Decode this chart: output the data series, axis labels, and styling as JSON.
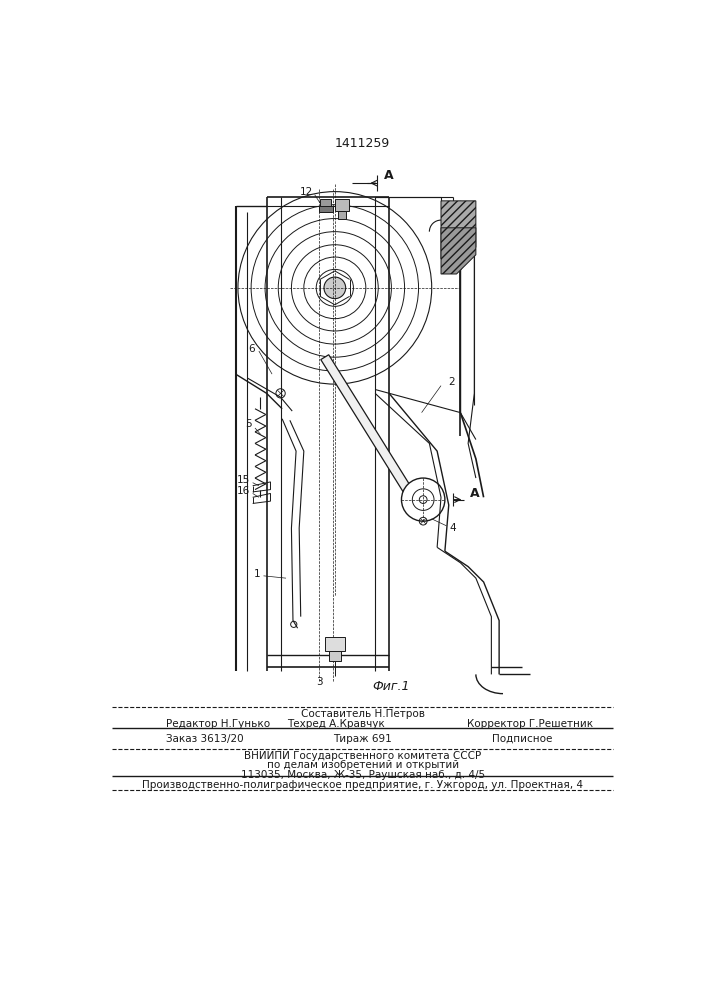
{
  "patent_number": "1411259",
  "fig_label": "Фиг.1",
  "bg_color": "#ffffff",
  "line_color": "#1a1a1a",
  "footer": {
    "compose": "Составитель Н.Петров",
    "editor": "Редактор Н.Гунько",
    "techred": "Техред А.Кравчук",
    "corrector": "Корректор Г.Решетник",
    "order": "Заказ 3613/20",
    "tirazh": "Тираж 691",
    "podpis": "Подписное",
    "vniip1": "ВНИИПИ Государственного комитета СССР",
    "vniip2": "по делам изобретений и открытий",
    "vniip3": "113035, Москва, Ж-35, Раушская наб., д. 4/5",
    "factory": "Производственно-полиграфическое предприятие, г. Ужгород, ул. Проектная, 4"
  }
}
